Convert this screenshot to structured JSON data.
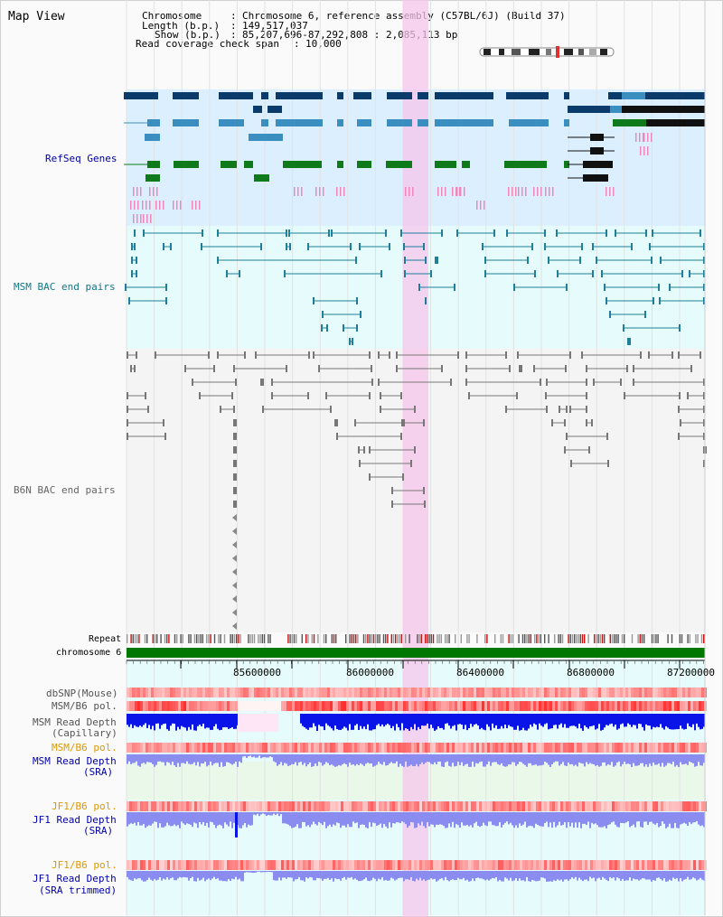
{
  "view_title": "Map View",
  "header": {
    "chromosome_label": "Chromosome",
    "chromosome_value": "Chromosome 6, reference assembly (C57BL/6J) (Build 37)",
    "length_label": "Length (b.p.)",
    "length_value": "149,517,037",
    "show_label": "Show (b.p.)",
    "show_value": "85,207,696-87,292,808 : 2,085,113 bp",
    "coverage_label": "Read coverage check span",
    "coverage_value": "10,000"
  },
  "tracks": {
    "refseq": "RefSeq Genes",
    "msm_bac": "MSM BAC end pairs",
    "b6n_bac": "B6N BAC end pairs",
    "repeat": "Repeat",
    "chromosome": "chromosome 6",
    "dbsnp": "dbSNP(Mouse)",
    "msm_b6_pol_1": "MSM/B6 pol.",
    "msm_read_depth_cap_1": "MSM Read Depth",
    "msm_read_depth_cap_2": "(Capillary)",
    "msm_b6_pol_2": "MSM/B6 pol.",
    "msm_read_depth_sra_1": "MSM Read Depth",
    "msm_read_depth_sra_2": "(SRA)",
    "jf1_b6_pol_1": "JF1/B6 pol.",
    "jf1_read_depth_sra_1": "JF1 Read Depth",
    "jf1_read_depth_sra_2": "(SRA)",
    "jf1_b6_pol_2": "JF1/B6 pol.",
    "jf1_read_depth_trim_1": "JF1 Read Depth",
    "jf1_read_depth_trim_2": "(SRA trimmed)"
  },
  "axis": {
    "ticks": [
      "85600000",
      "86000000",
      "86400000",
      "86800000",
      "87200000"
    ]
  },
  "colors": {
    "gene_dark": "#0b3b6b",
    "gene_mid": "#3b8fc0",
    "gene_green": "#0f7a1a",
    "gene_pink": "#ee88bb",
    "msm_bac": "#1f7f9a",
    "b6n_bac": "#777777",
    "refseq_label": "#0000aa",
    "msm_label": "#117788",
    "b6n_label": "#666666",
    "pol_label": "#dd9900",
    "depth_label": "#0000aa",
    "highlight": "#f5c6ec",
    "chrom_bar": "#007700",
    "depth_blue": "#0a14e8",
    "depth_light": "#8a8cf0"
  }
}
